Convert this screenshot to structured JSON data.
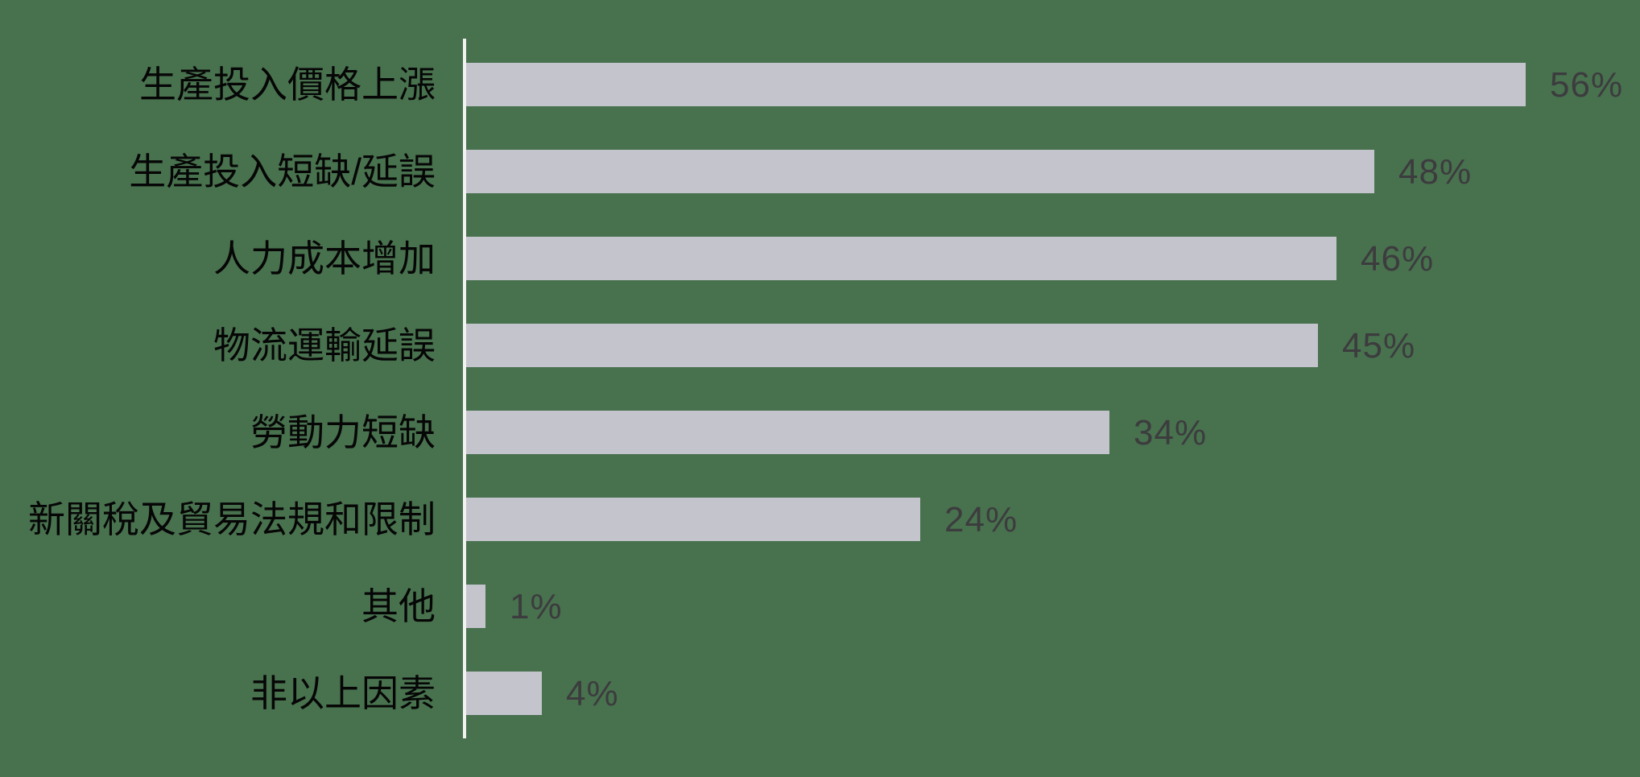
{
  "chart_data": {
    "type": "bar",
    "orientation": "horizontal",
    "title": "",
    "xlabel": "",
    "ylabel": "",
    "categories": [
      "生產投入價格上漲",
      "生產投入短缺/延誤",
      "人力成本增加",
      "物流運輸延誤",
      "勞動力短缺",
      "新關稅及貿易法規和限制",
      "其他",
      "非以上因素"
    ],
    "values": [
      56,
      48,
      46,
      45,
      34,
      24,
      1,
      4
    ],
    "value_labels": [
      "56%",
      "48%",
      "46%",
      "45%",
      "34%",
      "24%",
      "1%",
      "4%"
    ],
    "value_suffix": "%",
    "xlim": [
      0,
      60
    ],
    "grid": false,
    "legend": false,
    "x_axis_ticks_visible": false,
    "baseline": "left-vertical-line"
  },
  "colors": {
    "background": "#48714E",
    "bar": "#C4C4CC",
    "axis_line": "#F2F2F0",
    "category_label": "#060606",
    "value_label": "#3C3C3E"
  }
}
